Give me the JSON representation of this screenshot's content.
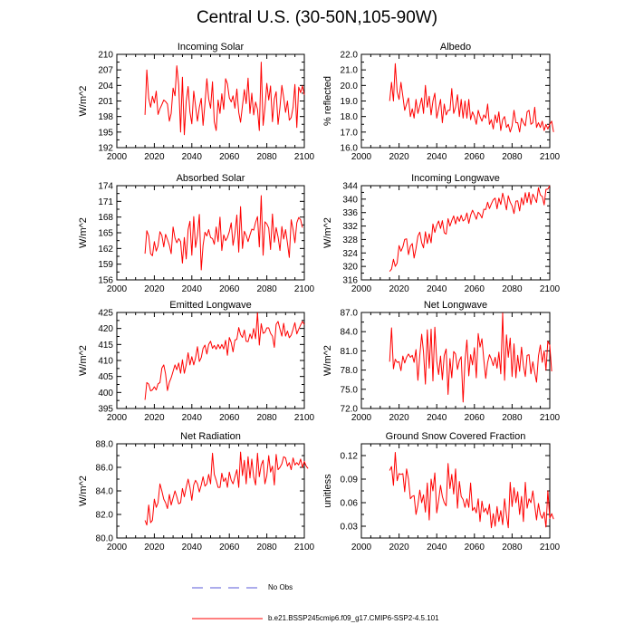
{
  "title": "Central U.S. (30-50N,105-90W)",
  "colors": {
    "model_line": "#ff0000",
    "obs_line": "#5a5ad8",
    "axis": "#000000"
  },
  "legend": {
    "obs_label": "No Obs",
    "model_label": "b.e21.BSSP245cmip6.f09_g17.CMIP6-SSP2-4.5.101"
  },
  "chart_data": [
    {
      "type": "line",
      "title": "Incoming Solar",
      "ylabel": "W/m^2",
      "xlabel": "",
      "xlim": [
        2000,
        2100
      ],
      "ylim": [
        192,
        210
      ],
      "xticks": [
        "2000",
        "2020",
        "2040",
        "2060",
        "2080",
        "2100"
      ],
      "yticks": [
        "192",
        "195",
        "198",
        "201",
        "204",
        "207",
        "210"
      ],
      "x_start": 2015,
      "values": [
        198.3,
        207.0,
        201.5,
        199.8,
        201.9,
        200.6,
        202.9,
        198.4,
        199.5,
        200.3,
        201.2,
        200.9,
        200.4,
        197.1,
        198.6,
        203.5,
        202.0,
        207.8,
        204.1,
        195.0,
        205.6,
        194.5,
        200.9,
        203.8,
        198.9,
        196.6,
        202.9,
        200.1,
        197.1,
        199.8,
        201.5,
        196.3,
        200.5,
        205.3,
        201.4,
        199.6,
        204.7,
        197.0,
        195.3,
        201.2,
        198.6,
        202.4,
        199.4,
        205.3,
        204.3,
        201.6,
        200.8,
        202.0,
        199.6,
        203.3,
        198.8,
        196.9,
        200.1,
        203.2,
        200.5,
        205.4,
        198.6,
        202.5,
        198.3,
        200.8,
        199.4,
        195.3,
        208.5,
        196.3,
        199.6,
        204.4,
        201.2,
        203.9,
        197.0,
        201.4,
        202.8,
        196.5,
        199.8,
        204.0,
        201.7,
        198.8,
        201.0,
        197.3,
        197.8,
        199.8,
        204.2,
        195.9,
        203.7,
        202.6,
        203.9,
        202.2
      ]
    },
    {
      "type": "line",
      "title": "Albedo",
      "ylabel": "% reflected",
      "xlabel": "",
      "xlim": [
        2000,
        2100
      ],
      "ylim": [
        16.0,
        22.0
      ],
      "xticks": [
        "2000",
        "2020",
        "2040",
        "2060",
        "2080",
        "2100"
      ],
      "yticks": [
        "16.0",
        "17.0",
        "18.0",
        "19.0",
        "20.0",
        "21.0",
        "22.0"
      ],
      "x_start": 2015,
      "values": [
        19.0,
        20.2,
        19.0,
        21.4,
        19.6,
        19.1,
        20.2,
        19.3,
        18.4,
        18.8,
        19.2,
        18.0,
        18.5,
        17.9,
        19.1,
        18.2,
        18.7,
        19.2,
        18.2,
        20.0,
        18.6,
        19.3,
        18.1,
        19.0,
        19.5,
        17.9,
        18.5,
        19.1,
        17.6,
        18.8,
        18.1,
        18.4,
        18.4,
        19.8,
        18.2,
        18.6,
        19.4,
        18.0,
        19.1,
        17.9,
        19.0,
        17.9,
        19.1,
        17.8,
        18.3,
        18.0,
        17.5,
        18.4,
        18.0,
        17.7,
        18.1,
        17.9,
        18.8,
        17.5,
        17.8,
        17.2,
        18.1,
        17.6,
        18.3,
        17.1,
        17.8,
        18.0,
        17.3,
        17.5,
        17.0,
        17.4,
        18.4,
        17.6,
        17.6,
        17.0,
        17.9,
        17.6,
        17.4,
        18.3,
        18.4,
        17.5,
        17.6,
        18.6,
        17.3,
        17.6,
        17.3,
        17.7,
        17.1,
        17.5,
        17.2,
        17.5,
        17.7,
        17.0
      ]
    },
    {
      "type": "line",
      "title": "Absorbed Solar",
      "ylabel": "W/m^2",
      "xlabel": "",
      "xlim": [
        2000,
        2100
      ],
      "ylim": [
        156,
        174
      ],
      "xticks": [
        "2000",
        "2020",
        "2040",
        "2060",
        "2080",
        "2100"
      ],
      "yticks": [
        "156",
        "159",
        "162",
        "165",
        "168",
        "171",
        "174"
      ],
      "x_start": 2015,
      "values": [
        161.0,
        165.4,
        164.4,
        161.0,
        160.6,
        163.3,
        161.5,
        162.5,
        165.2,
        164.5,
        162.3,
        164.7,
        163.7,
        162.6,
        161.0,
        166.1,
        164.0,
        163.1,
        163.9,
        163.3,
        159.2,
        164.1,
        160.0,
        165.6,
        167.2,
        160.7,
        168.1,
        162.2,
        164.5,
        168.5,
        157.9,
        162.6,
        165.1,
        164.4,
        165.6,
        164.1,
        163.9,
        162.8,
        166.1,
        163.3,
        168.0,
        161.6,
        164.6,
        163.5,
        164.1,
        165.2,
        166.9,
        162.6,
        164.9,
        168.4,
        161.3,
        170.0,
        162.0,
        165.3,
        164.5,
        163.3,
        164.6,
        165.7,
        165.5,
        167.0,
        168.1,
        162.3,
        172.1,
        160.7,
        167.1,
        166.7,
        165.9,
        161.8,
        168.6,
        163.2,
        166.0,
        164.2,
        161.6,
        166.2,
        163.8,
        165.6,
        163.0,
        160.3,
        167.5,
        165.6,
        163.1,
        166.9,
        167.9,
        167.5,
        166.0
      ]
    },
    {
      "type": "line",
      "title": "Incoming Longwave",
      "ylabel": "W/m^2",
      "xlabel": "",
      "xlim": [
        2000,
        2100
      ],
      "ylim": [
        316,
        344
      ],
      "xticks": [
        "2000",
        "2020",
        "2040",
        "2060",
        "2080",
        "2100"
      ],
      "yticks": [
        "316",
        "320",
        "324",
        "328",
        "332",
        "336",
        "340",
        "344"
      ],
      "x_start": 2015,
      "values": [
        318.5,
        319.2,
        322.1,
        320.0,
        321.0,
        326.2,
        324.5,
        325.8,
        328.0,
        328.2,
        323.5,
        326.0,
        326.8,
        322.5,
        325.3,
        329.0,
        330.2,
        327.0,
        325.5,
        330.3,
        326.8,
        329.7,
        327.0,
        332.6,
        330.1,
        332.2,
        333.5,
        331.3,
        333.6,
        330.0,
        329.6,
        334.2,
        332.0,
        333.6,
        335.0,
        332.6,
        334.8,
        333.4,
        335.2,
        333.5,
        334.0,
        335.9,
        332.8,
        335.2,
        336.7,
        335.5,
        334.0,
        336.1,
        335.5,
        334.4,
        337.0,
        336.9,
        339.1,
        337.2,
        338.6,
        339.8,
        340.3,
        337.1,
        340.3,
        338.4,
        341.8,
        339.5,
        336.8,
        341.0,
        339.1,
        338.0,
        335.7,
        339.4,
        339.5,
        336.5,
        340.4,
        338.3,
        341.9,
        339.0,
        342.0,
        338.4,
        341.5,
        340.3,
        339.0,
        343.4,
        341.2,
        340.8,
        338.3,
        342.9,
        343.0,
        344.0
      ]
    },
    {
      "type": "line",
      "title": "Emitted Longwave",
      "ylabel": "W/m^2",
      "xlabel": "",
      "xlim": [
        2000,
        2100
      ],
      "ylim": [
        395,
        425
      ],
      "xticks": [
        "2000",
        "2020",
        "2040",
        "2060",
        "2080",
        "2100"
      ],
      "yticks": [
        "395",
        "400",
        "405",
        "410",
        "415",
        "420",
        "425"
      ],
      "x_start": 2015,
      "values": [
        397.7,
        403.1,
        402.6,
        400.5,
        400.8,
        401.8,
        400.8,
        402.7,
        403.1,
        407.6,
        408.6,
        405.8,
        400.6,
        403.2,
        404.6,
        406.6,
        408.6,
        407.1,
        409.2,
        406.0,
        410.2,
        406.0,
        408.6,
        412.4,
        408.6,
        411.2,
        408.6,
        410.8,
        414.3,
        409.7,
        410.9,
        413.8,
        414.8,
        412.0,
        415.0,
        416.0,
        413.8,
        414.7,
        413.5,
        415.0,
        413.7,
        415.0,
        413.6,
        416.3,
        411.6,
        417.2,
        415.6,
        412.7,
        416.4,
        416.6,
        420.3,
        418.1,
        417.2,
        419.5,
        416.0,
        415.9,
        418.3,
        416.8,
        420.0,
        416.8,
        424.9,
        414.8,
        421.5,
        418.5,
        418.8,
        420.2,
        420.2,
        418.5,
        417.6,
        414.1,
        421.3,
        422.2,
        419.8,
        417.6,
        421.6,
        417.6,
        419.2,
        417.1,
        417.9,
        419.8,
        421.8,
        418.3,
        419.8,
        421.1,
        422.2,
        421.2
      ]
    },
    {
      "type": "line",
      "title": "Net Longwave",
      "ylabel": "W/m^2",
      "xlabel": "",
      "xlim": [
        2000,
        2100
      ],
      "ylim": [
        72.0,
        87.0
      ],
      "xticks": [
        "2000",
        "2020",
        "2040",
        "2060",
        "2080",
        "2100"
      ],
      "yticks": [
        "72.0",
        "75.0",
        "78.0",
        "81.0",
        "84.0",
        "87.0"
      ],
      "x_start": 2015,
      "values": [
        79.3,
        84.6,
        78.2,
        79.7,
        79.2,
        79.3,
        77.9,
        80.2,
        79.1,
        80.0,
        80.5,
        80.0,
        80.3,
        79.2,
        81.2,
        76.4,
        80.3,
        83.6,
        80.8,
        75.8,
        84.3,
        78.3,
        84.4,
        76.3,
        84.7,
        79.4,
        77.3,
        80.2,
        76.5,
        80.3,
        81.3,
        74.2,
        79.8,
        76.8,
        80.9,
        80.5,
        78.1,
        79.5,
        80.1,
        73.0,
        79.4,
        82.7,
        77.1,
        80.4,
        78.8,
        81.5,
        76.8,
        83.7,
        81.6,
        82.9,
        79.6,
        76.7,
        79.2,
        80.4,
        79.7,
        78.7,
        80.0,
        78.3,
        80.8,
        77.4,
        86.9,
        76.4,
        83.5,
        80.0,
        83.0,
        77.0,
        82.1,
        76.8,
        80.3,
        77.8,
        81.6,
        78.7,
        77.0,
        80.3,
        80.4,
        77.4,
        79.3,
        77.6,
        76.1,
        80.2,
        81.9,
        79.2,
        81.0,
        78.0,
        82.5,
        81.9,
        77.8
      ]
    },
    {
      "type": "line",
      "title": "Net Radiation",
      "ylabel": "W/m^2",
      "xlabel": "",
      "xlim": [
        2000,
        2100
      ],
      "ylim": [
        80.0,
        88.0
      ],
      "xticks": [
        "2000",
        "2020",
        "2040",
        "2060",
        "2080",
        "2100"
      ],
      "yticks": [
        "80.0",
        "82.0",
        "84.0",
        "86.0",
        "88.0"
      ],
      "x_start": 2015,
      "values": [
        81.5,
        81.1,
        82.8,
        81.3,
        81.5,
        83.3,
        82.6,
        83.0,
        84.6,
        84.0,
        83.3,
        83.0,
        82.5,
        83.7,
        82.8,
        83.4,
        84.0,
        83.5,
        82.9,
        83.0,
        84.2,
        83.5,
        84.3,
        85.0,
        84.3,
        83.2,
        84.5,
        84.9,
        84.6,
        83.9,
        84.5,
        85.2,
        84.4,
        84.6,
        85.4,
        84.6,
        87.2,
        85.4,
        84.9,
        84.3,
        84.3,
        85.5,
        84.8,
        85.1,
        84.3,
        85.6,
        84.9,
        84.6,
        85.2,
        85.8,
        84.3,
        87.3,
        85.3,
        86.6,
        84.6,
        86.9,
        85.1,
        86.7,
        85.2,
        84.5,
        87.2,
        85.2,
        86.2,
        86.6,
        84.6,
        85.3,
        87.0,
        85.6,
        86.1,
        84.5,
        87.1,
        85.8,
        86.0,
        86.3,
        86.9,
        86.8,
        86.1,
        86.4,
        85.8,
        86.8,
        86.2,
        86.4,
        86.2,
        86.7,
        86.0,
        86.5,
        86.1,
        85.9
      ]
    },
    {
      "type": "line",
      "title": "Ground Snow Covered Fraction",
      "ylabel": "unitless",
      "xlabel": "",
      "xlim": [
        2000,
        2100
      ],
      "ylim": [
        0.015,
        0.135
      ],
      "xticks": [
        "2000",
        "2020",
        "2040",
        "2060",
        "2080",
        "2100"
      ],
      "yticks": [
        "0.03",
        "0.06",
        "0.09",
        "0.12"
      ],
      "x_start": 2015,
      "values": [
        0.101,
        0.106,
        0.082,
        0.124,
        0.088,
        0.097,
        0.096,
        0.097,
        0.074,
        0.103,
        0.09,
        0.065,
        0.068,
        0.069,
        0.045,
        0.057,
        0.076,
        0.06,
        0.07,
        0.048,
        0.085,
        0.038,
        0.09,
        0.075,
        0.098,
        0.047,
        0.063,
        0.082,
        0.068,
        0.06,
        0.056,
        0.11,
        0.078,
        0.096,
        0.071,
        0.103,
        0.053,
        0.087,
        0.068,
        0.064,
        0.054,
        0.065,
        0.054,
        0.085,
        0.05,
        0.054,
        0.047,
        0.065,
        0.036,
        0.062,
        0.048,
        0.053,
        0.045,
        0.058,
        0.028,
        0.046,
        0.03,
        0.055,
        0.036,
        0.05,
        0.032,
        0.065,
        0.044,
        0.028,
        0.086,
        0.055,
        0.079,
        0.06,
        0.074,
        0.045,
        0.068,
        0.036,
        0.086,
        0.053,
        0.065,
        0.06,
        0.075,
        0.056,
        0.038,
        0.059,
        0.045,
        0.04,
        0.048,
        0.029,
        0.075,
        0.04,
        0.046,
        0.039
      ]
    }
  ]
}
